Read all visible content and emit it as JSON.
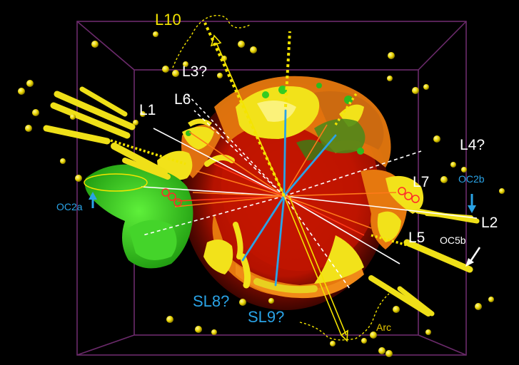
{
  "image": {
    "description_colors": {
      "background": "#000000",
      "box_frame": "#6b2a6b",
      "core_red": "#c81a00",
      "shell_orange": "#e87a10",
      "deposit_yellow": "#f0e020",
      "deposit_green": "#39d11e",
      "cyan_lines": "#2aa3e6"
    }
  },
  "labels": {
    "L10": "L10",
    "L3": "L3?",
    "L6": "L6",
    "L1": "L1",
    "L4": "L4?",
    "L7": "L7",
    "L2": "L2",
    "L5": "L5",
    "OC2a": "OC2a",
    "OC2b": "OC2b",
    "OC5b": "OC5b",
    "SL8": "SL8?",
    "SL9": "SL9?",
    "Arc": "Arc"
  }
}
